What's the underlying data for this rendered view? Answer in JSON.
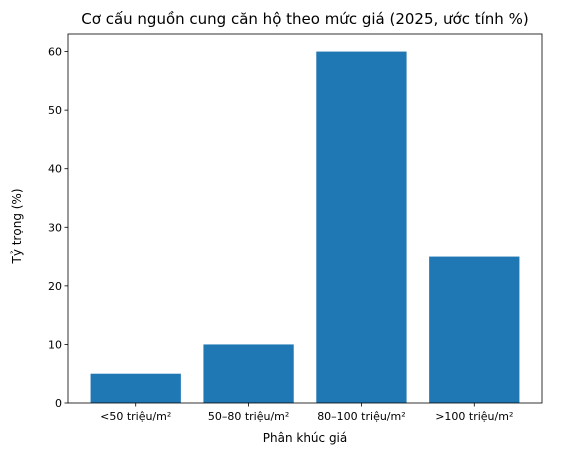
{
  "chart_data": {
    "type": "bar",
    "title": "Cơ cấu nguồn cung căn hộ theo mức giá (2025, ước tính %)",
    "xlabel": "Phân khúc giá",
    "ylabel": "Tỷ trọng (%)",
    "categories": [
      "<50 triệu/m²",
      "50–80 triệu/m²",
      "80–100 triệu/m²",
      ">100 triệu/m²"
    ],
    "values": [
      5,
      10,
      60,
      25
    ],
    "ylim": [
      0,
      63
    ],
    "yticks": [
      0,
      10,
      20,
      30,
      40,
      50,
      60
    ],
    "bar_color": "#1f77b4",
    "grid": false,
    "legend": false
  }
}
